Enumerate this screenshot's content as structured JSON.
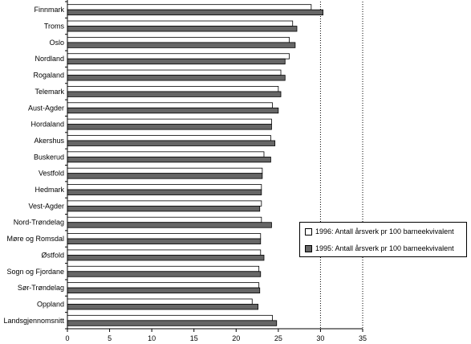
{
  "chart_data": {
    "type": "bar",
    "orientation": "horizontal",
    "categories": [
      "Finnmark",
      "Troms",
      "Oslo",
      "Nordland",
      "Rogaland",
      "Telemark",
      "Aust-Agder",
      "Hordaland",
      "Akershus",
      "Buskerud",
      "Vestfold",
      "Hedmark",
      "Vest-Agder",
      "Nord-Trøndelag",
      "Møre og Romsdal",
      "Østfold",
      "Sogn og Fjordane",
      "Sør-Trøndelag",
      "Oppland",
      "Landsgjennomsnitt"
    ],
    "series": [
      {
        "name": "1996: Antall årsverk pr 100 barneekvivalent",
        "color": "#ffffff",
        "values": [
          28.9,
          26.7,
          26.3,
          26.3,
          25.3,
          25.0,
          24.3,
          24.2,
          24.1,
          23.3,
          23.1,
          23.0,
          23.0,
          23.0,
          22.9,
          22.9,
          22.7,
          22.7,
          21.9,
          24.3
        ]
      },
      {
        "name": "1995: Antall årsverk pr 100 barneekvivalent",
        "color": "#666666",
        "values": [
          30.3,
          27.2,
          27.0,
          25.8,
          25.8,
          25.3,
          25.0,
          24.2,
          24.6,
          24.1,
          23.1,
          23.0,
          22.8,
          24.2,
          22.9,
          23.3,
          22.9,
          22.8,
          22.6,
          24.8
        ]
      }
    ],
    "xlim": [
      0,
      35
    ],
    "xticks": [
      0,
      5,
      10,
      15,
      20,
      25,
      30,
      35
    ],
    "grid": "vertical dotted at 30 and 35",
    "legend_position": "right"
  }
}
